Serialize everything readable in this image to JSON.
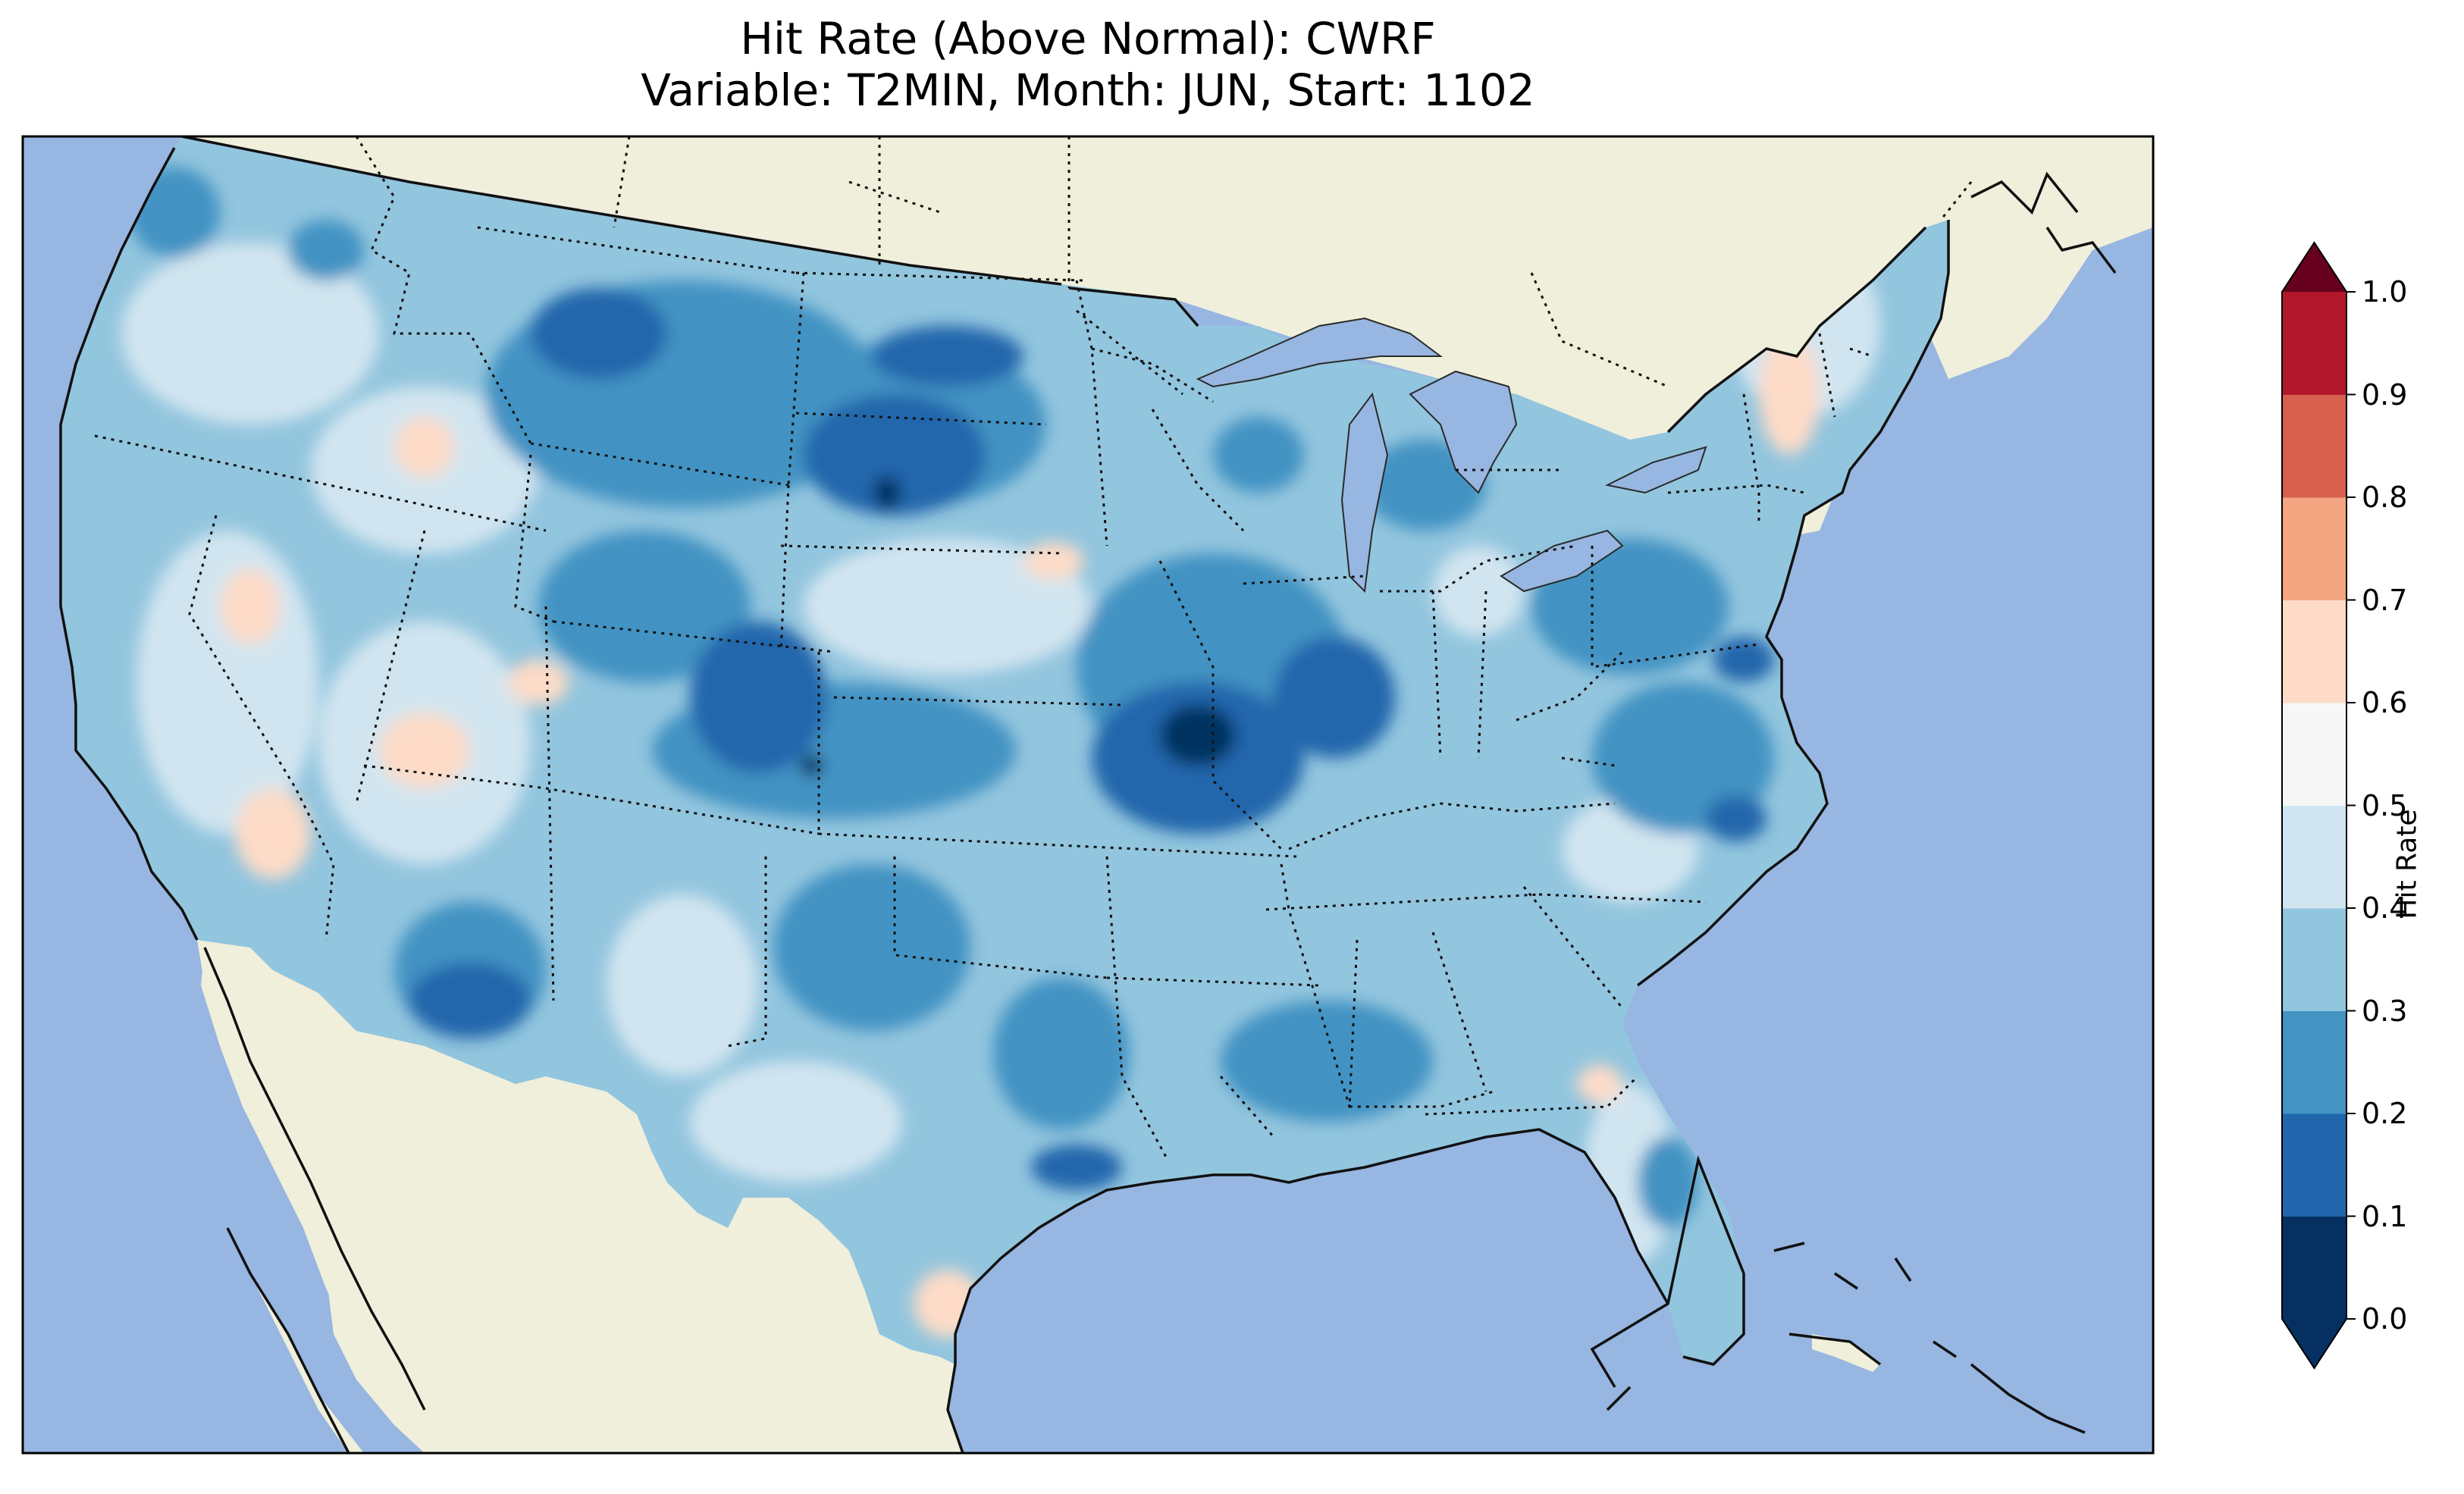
{
  "title_line1": "Hit Rate (Above Normal): CWRF",
  "title_line2": "Variable: T2MIN, Month: JUN, Start: 1102",
  "colors": {
    "ocean": "#97b6e1",
    "land": "#efefdb",
    "lakes": "#97b6e1"
  },
  "colorbar": {
    "label": "Hit Rate",
    "ticks": [
      "0.0",
      "0.1",
      "0.2",
      "0.3",
      "0.4",
      "0.5",
      "0.6",
      "0.7",
      "0.8",
      "0.9",
      "1.0"
    ],
    "colors": [
      "#053061",
      "#2166ac",
      "#4393c3",
      "#92c5de",
      "#d1e5f0",
      "#f7f7f7",
      "#fddbc7",
      "#f4a582",
      "#d6604d",
      "#b2182b",
      "#67001f"
    ],
    "extend": "both"
  },
  "map": {
    "region": "Contiguous United States",
    "value_range": [
      0.0,
      1.0
    ]
  }
}
